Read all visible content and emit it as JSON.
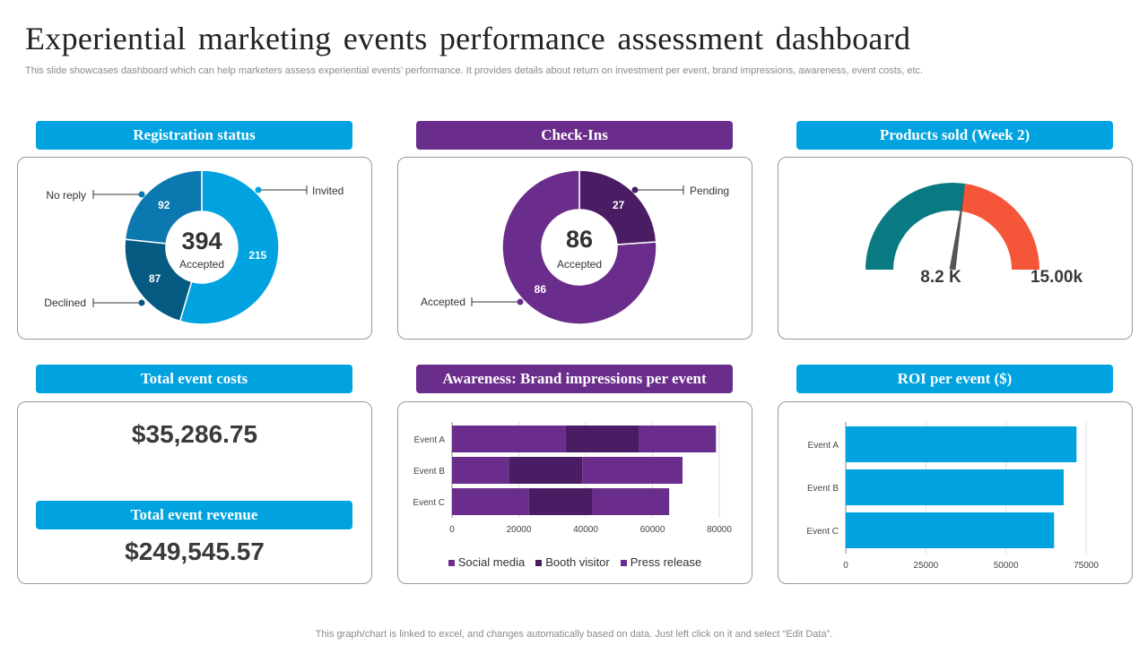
{
  "header": {
    "title": "Experiential marketing events performance assessment dashboard",
    "subtitle": "This slide showcases dashboard which can help marketers assess experiential events’ performance. It provides details about return on investment per event, brand impressions, awareness, event costs, etc."
  },
  "footer": {
    "note": "This graph/chart is linked to excel, and changes automatically based on data. Just left click on it and select “Edit Data”."
  },
  "colors": {
    "accent_blue": "#00a3e0",
    "accent_purple": "#6b2d8b",
    "reg_invited": "#00a3e0",
    "reg_declined": "#065a82",
    "reg_noreply": "#0b78b0",
    "checkin_accepted": "#6b2d8b",
    "checkin_pending": "#4a1c64",
    "gauge_teal": "#0a7a82",
    "gauge_orange": "#f5563a",
    "social_media": "#6b2d8b",
    "booth_visitor": "#4a1c64",
    "press_release": "#6b2d8b",
    "roi_bar": "#00a3e0"
  },
  "registration": {
    "heading": "Registration status",
    "center_value": "394",
    "center_label": "Accepted"
  },
  "checkins": {
    "heading": "Check-Ins",
    "center_value": "86",
    "center_label": "Accepted"
  },
  "products": {
    "heading": "Products sold (Week 2)",
    "value_label": "8.2 K",
    "max_label": "15.00k"
  },
  "costs": {
    "heading": "Total event costs",
    "value": "$35,286.75",
    "revenue_heading": "Total event revenue",
    "revenue_value": "$249,545.57"
  },
  "awareness": {
    "heading": "Awareness: Brand impressions per event"
  },
  "roi": {
    "heading": "ROI per event ($)"
  },
  "chart_data": [
    {
      "type": "pie",
      "donut": true,
      "categories": [
        "Invited",
        "Declined",
        "No reply"
      ],
      "values": [
        215,
        87,
        92
      ],
      "colors": [
        "#00a3e0",
        "#065a82",
        "#0b78b0"
      ]
    },
    {
      "type": "pie",
      "donut": true,
      "categories": [
        "Pending",
        "Accepted"
      ],
      "values": [
        27,
        86
      ],
      "colors": [
        "#4a1c64",
        "#6b2d8b"
      ]
    },
    {
      "type": "gauge",
      "value": 8.2,
      "max": 15,
      "labels": [
        "8.2 K",
        "15.00k"
      ]
    },
    {
      "type": "bar",
      "orientation": "horizontal",
      "stacked": true,
      "categories": [
        "Event A",
        "Event B",
        "Event C"
      ],
      "series": [
        {
          "name": "Social media",
          "values": [
            34000,
            17000,
            23000
          ]
        },
        {
          "name": "Booth visitor",
          "values": [
            22000,
            22000,
            19000
          ]
        },
        {
          "name": "Press release",
          "values": [
            23000,
            30000,
            23000
          ]
        }
      ],
      "xlim": [
        0,
        80000
      ],
      "xticks": [
        "0",
        "20000",
        "40000",
        "60000",
        "80000"
      ],
      "legend": "bottom",
      "grid": true
    },
    {
      "type": "bar",
      "orientation": "horizontal",
      "categories": [
        "Event A",
        "Event B",
        "Event C"
      ],
      "values": [
        72000,
        68000,
        65000
      ],
      "xlim": [
        0,
        75000
      ],
      "xticks": [
        "0",
        "25000",
        "50000",
        "75000"
      ],
      "grid": true
    }
  ]
}
